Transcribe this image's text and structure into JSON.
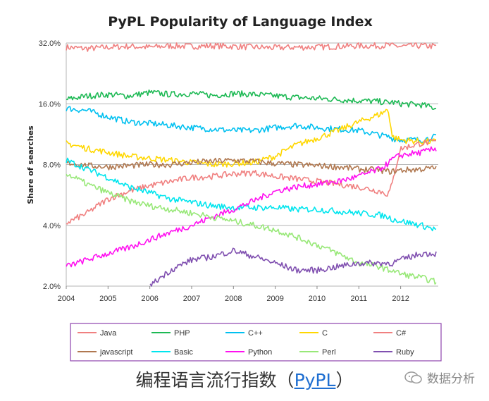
{
  "chart_data": {
    "type": "line",
    "title": "PyPL Popularity of Language Index",
    "ylabel": "Share of searches",
    "xlabel": "",
    "y_scale": "log",
    "ylim": [
      2.0,
      32.0
    ],
    "xlim": [
      2004.0,
      2012.9
    ],
    "y_ticks": [
      "2.0%",
      "4.0%",
      "8.0%",
      "16.0%",
      "32.0%"
    ],
    "x_ticks": [
      "2004",
      "2005",
      "2006",
      "2007",
      "2008",
      "2009",
      "2010",
      "2011",
      "2012"
    ],
    "x": [
      2004.0,
      2004.5,
      2005.0,
      2005.5,
      2006.0,
      2006.5,
      2007.0,
      2007.5,
      2008.0,
      2008.5,
      2009.0,
      2009.5,
      2010.0,
      2010.5,
      2011.0,
      2011.5,
      2011.7,
      2011.8,
      2012.0,
      2012.5,
      2012.85
    ],
    "series": [
      {
        "name": "Java",
        "color": "#f08080",
        "values": [
          30.5,
          30.0,
          30.5,
          30.8,
          30.5,
          31.0,
          30.8,
          31.0,
          30.8,
          30.5,
          30.3,
          30.5,
          30.5,
          30.8,
          31.0,
          31.0,
          31.2,
          31.0,
          30.8,
          31.0,
          30.8
        ]
      },
      {
        "name": "PHP",
        "color": "#1db954",
        "values": [
          16.8,
          17.5,
          17.8,
          17.5,
          18.2,
          17.8,
          18.0,
          17.6,
          18.0,
          17.8,
          17.5,
          17.2,
          17.0,
          16.8,
          16.6,
          16.4,
          16.2,
          16.3,
          16.0,
          15.8,
          15.2
        ]
      },
      {
        "name": "C++",
        "color": "#00c0f0",
        "values": [
          15.2,
          14.8,
          13.8,
          13.0,
          12.8,
          12.5,
          12.2,
          12.0,
          11.8,
          11.8,
          12.2,
          12.5,
          12.2,
          12.0,
          11.8,
          11.2,
          11.0,
          10.8,
          10.6,
          10.6,
          11.0
        ]
      },
      {
        "name": "C",
        "color": "#ffd700",
        "values": [
          10.2,
          9.6,
          9.2,
          8.8,
          8.6,
          8.4,
          8.2,
          8.0,
          8.1,
          8.2,
          8.8,
          10.0,
          10.8,
          11.8,
          13.0,
          14.2,
          15.0,
          11.0,
          10.6,
          10.4,
          10.4
        ]
      },
      {
        "name": "C#",
        "color": "#f08080",
        "values": [
          4.1,
          4.6,
          5.4,
          5.9,
          6.3,
          6.6,
          6.9,
          7.0,
          7.2,
          7.3,
          7.0,
          6.8,
          6.6,
          6.4,
          6.2,
          5.9,
          5.7,
          6.4,
          9.6,
          10.2,
          10.4
        ]
      },
      {
        "name": "javascript",
        "color": "#b07850",
        "values": [
          8.2,
          7.9,
          7.8,
          7.9,
          8.0,
          8.0,
          8.2,
          8.3,
          8.4,
          8.3,
          8.1,
          8.0,
          7.9,
          7.8,
          7.6,
          7.5,
          7.4,
          7.4,
          7.5,
          7.6,
          7.7
        ]
      },
      {
        "name": "Basic",
        "color": "#00e5ee",
        "values": [
          8.4,
          7.6,
          6.9,
          6.2,
          5.8,
          5.4,
          5.2,
          5.0,
          4.9,
          4.9,
          4.9,
          4.8,
          4.8,
          4.7,
          4.6,
          4.5,
          4.4,
          4.3,
          4.2,
          4.0,
          3.8
        ]
      },
      {
        "name": "Python",
        "color": "#ff10f0",
        "values": [
          2.5,
          2.7,
          2.9,
          3.1,
          3.4,
          3.7,
          4.0,
          4.4,
          4.8,
          5.3,
          5.9,
          6.2,
          6.4,
          6.6,
          7.0,
          7.6,
          8.1,
          8.5,
          8.9,
          9.2,
          9.6
        ]
      },
      {
        "name": "Perl",
        "color": "#98e878",
        "values": [
          7.2,
          6.4,
          5.8,
          5.3,
          5.0,
          4.8,
          4.6,
          4.4,
          4.2,
          4.0,
          3.8,
          3.5,
          3.2,
          2.9,
          2.6,
          2.5,
          2.4,
          2.4,
          2.3,
          2.2,
          2.1
        ]
      },
      {
        "name": "Ruby",
        "color": "#8050b0",
        "values": [
          null,
          null,
          null,
          null,
          2.0,
          2.4,
          2.7,
          2.8,
          3.0,
          2.8,
          2.6,
          2.4,
          2.4,
          2.5,
          2.6,
          2.6,
          2.6,
          2.6,
          2.7,
          2.9,
          2.9
        ]
      }
    ],
    "legend_placement": "bottom",
    "grid": "horizontal"
  },
  "caption": {
    "text": "编程语言流行指数（",
    "link": "PyPL",
    "end": "）"
  },
  "watermark": {
    "text": "数据分析"
  }
}
